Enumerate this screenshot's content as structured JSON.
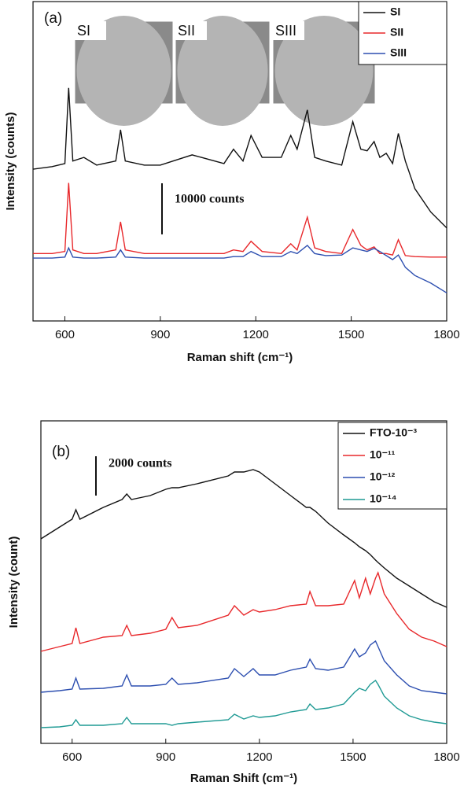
{
  "chart_data": [
    {
      "type": "line",
      "panel_label": "(a)",
      "xlabel": "Raman shift (cm⁻¹)",
      "ylabel": "Intensity (counts)",
      "insets": [
        "SI",
        "SII",
        "SIII"
      ],
      "scale_bar": {
        "value": 10000,
        "label": "10000 counts"
      },
      "xlim": [
        500,
        1800
      ],
      "xticks": [
        600,
        900,
        1200,
        1500,
        1800
      ],
      "ylim": [
        0,
        62500
      ],
      "legend": "upper right",
      "x": [
        500,
        560,
        600,
        612,
        625,
        660,
        700,
        760,
        775,
        790,
        850,
        900,
        1000,
        1100,
        1130,
        1160,
        1185,
        1220,
        1280,
        1310,
        1330,
        1362,
        1385,
        1420,
        1470,
        1505,
        1530,
        1550,
        1572,
        1590,
        1610,
        1630,
        1648,
        1670,
        1700,
        1750,
        1800
      ],
      "series": [
        {
          "name": "SI",
          "color": "#111111",
          "values": [
            29700,
            30200,
            30800,
            45600,
            31300,
            32000,
            30500,
            31300,
            37400,
            31300,
            30500,
            30500,
            32500,
            30800,
            33600,
            31300,
            36300,
            32000,
            32000,
            36300,
            33600,
            41300,
            32000,
            31300,
            30500,
            39000,
            33600,
            33300,
            35100,
            32000,
            32800,
            30800,
            36700,
            31300,
            25900,
            21300,
            18200
          ]
        },
        {
          "name": "SII",
          "color": "#e8282b",
          "values": [
            13200,
            13200,
            13600,
            27000,
            13900,
            13200,
            13200,
            13900,
            19400,
            13900,
            13200,
            13200,
            13200,
            13200,
            13900,
            13600,
            15600,
            13600,
            13200,
            15100,
            13900,
            20300,
            14300,
            13600,
            13200,
            17900,
            14800,
            13900,
            14500,
            13200,
            13200,
            12900,
            15900,
            12800,
            12600,
            12500,
            12500
          ]
        },
        {
          "name": "SIII",
          "color": "#2d4fb0",
          "values": [
            12300,
            12300,
            12500,
            14300,
            12500,
            12300,
            12300,
            12500,
            13900,
            12500,
            12300,
            12300,
            12300,
            12300,
            12600,
            12600,
            13600,
            12600,
            12600,
            13600,
            13200,
            14800,
            13200,
            12800,
            12900,
            14300,
            13900,
            13600,
            14200,
            13600,
            12800,
            12000,
            12900,
            10500,
            8900,
            7400,
            5500
          ]
        }
      ]
    },
    {
      "type": "line",
      "panel_label": "(b)",
      "xlabel": "Raman Shift (cm⁻¹)",
      "ylabel": "Intensity (count)",
      "scale_bar": {
        "value": 2000,
        "label": "2000 counts"
      },
      "xlim": [
        500,
        1800
      ],
      "xticks": [
        600,
        900,
        1200,
        1500,
        1800
      ],
      "ylim": [
        0,
        16400
      ],
      "legend": "upper right",
      "x": [
        500,
        560,
        600,
        612,
        625,
        700,
        760,
        775,
        790,
        850,
        900,
        920,
        940,
        1000,
        1100,
        1120,
        1150,
        1180,
        1200,
        1250,
        1300,
        1350,
        1362,
        1380,
        1420,
        1470,
        1505,
        1520,
        1540,
        1555,
        1572,
        1580,
        1600,
        1640,
        1680,
        1720,
        1760,
        1800
      ],
      "series": [
        {
          "name": "FTO-10⁻³",
          "color": "#111111",
          "values": [
            10400,
            11000,
            11400,
            11880,
            11400,
            12000,
            12400,
            12680,
            12400,
            12600,
            12920,
            13000,
            13000,
            13200,
            13600,
            13800,
            13800,
            13920,
            13800,
            13200,
            12600,
            12000,
            12000,
            11800,
            11200,
            10600,
            10200,
            10000,
            9800,
            9600,
            9320,
            9200,
            8920,
            8400,
            8000,
            7600,
            7200,
            6920
          ]
        },
        {
          "name": "10⁻¹¹",
          "color": "#e8282b",
          "values": [
            4680,
            4920,
            5080,
            5880,
            5080,
            5400,
            5480,
            6000,
            5480,
            5600,
            5800,
            6400,
            5880,
            6000,
            6520,
            7000,
            6520,
            6800,
            6680,
            6800,
            7000,
            7080,
            7720,
            7000,
            7000,
            7080,
            8280,
            7400,
            8400,
            7600,
            8400,
            8680,
            7600,
            6600,
            5800,
            5400,
            5200,
            4920
          ]
        },
        {
          "name": "10⁻¹²",
          "color": "#2d4fb0",
          "values": [
            2600,
            2680,
            2760,
            3320,
            2760,
            2800,
            2920,
            3480,
            2920,
            2920,
            3000,
            3320,
            3000,
            3080,
            3320,
            3800,
            3400,
            3800,
            3480,
            3480,
            3720,
            3880,
            4280,
            3800,
            3720,
            3880,
            4800,
            4400,
            4600,
            5000,
            5200,
            4920,
            4200,
            3480,
            2920,
            2680,
            2600,
            2520
          ]
        },
        {
          "name": "10⁻¹⁴",
          "color": "#1f9a94",
          "values": [
            800,
            840,
            920,
            1200,
            920,
            920,
            1000,
            1320,
            1000,
            1000,
            1000,
            920,
            1000,
            1080,
            1200,
            1480,
            1240,
            1400,
            1320,
            1400,
            1600,
            1720,
            2000,
            1720,
            1800,
            2000,
            2600,
            2800,
            2680,
            3000,
            3200,
            3000,
            2400,
            1800,
            1400,
            1200,
            1080,
            1000
          ]
        }
      ]
    }
  ]
}
